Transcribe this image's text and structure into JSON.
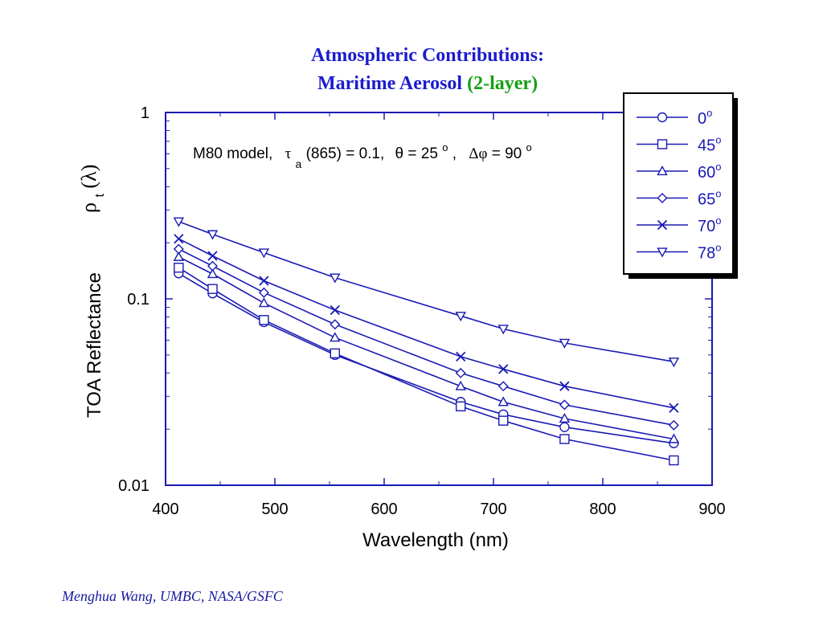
{
  "slide": {
    "title_line1": "Atmospheric Contributions:",
    "title_line2_main": "Maritime Aerosol",
    "title_line2_highlight": "(2-layer)",
    "footer": "Menghua Wang, UMBC, NASA/GSFC"
  },
  "colors": {
    "title": "#1c1ccd",
    "highlight": "#14a014",
    "series": "#1a1ab4",
    "axis": "#1a1ab4",
    "text": "#000000"
  },
  "chart_data": {
    "type": "line",
    "xlabel": "Wavelength (nm)",
    "ylabel": "TOA Reflectance",
    "ylabel_symbol": "ρ",
    "ylabel_sub": "t",
    "ylabel_arg": "(λ)",
    "xlim": [
      400,
      900
    ],
    "ylim": [
      0.01,
      1
    ],
    "yscale": "log",
    "xticks": [
      "400",
      "500",
      "600",
      "700",
      "800",
      "900"
    ],
    "yticks": [
      "0.01",
      "0.1",
      "1"
    ],
    "annotation": {
      "model": "M80 model,",
      "tau": "τ",
      "tau_sub": "a",
      "tau_rest": "(865) = 0.1,",
      "theta": "θ = 25",
      "theta_sup": "o",
      "sep": ",",
      "dphi": "Δφ",
      "dphi_rest": " = 90",
      "dphi_sup": "o"
    },
    "legend_position": "top-right",
    "x": [
      412,
      443,
      490,
      555,
      670,
      709,
      765,
      865
    ],
    "series": [
      {
        "name": "0",
        "sup": "o",
        "marker": "circle",
        "values": [
          0.137,
          0.107,
          0.075,
          0.05,
          0.028,
          0.024,
          0.0205,
          0.0168
        ]
      },
      {
        "name": "45",
        "sup": "o",
        "marker": "square",
        "values": [
          0.147,
          0.113,
          0.077,
          0.051,
          0.0265,
          0.0222,
          0.0177,
          0.0136
        ]
      },
      {
        "name": "60",
        "sup": "o",
        "marker": "triangle-up",
        "values": [
          0.168,
          0.136,
          0.095,
          0.062,
          0.034,
          0.028,
          0.0228,
          0.0177
        ]
      },
      {
        "name": "65",
        "sup": "o",
        "marker": "diamond",
        "values": [
          0.185,
          0.15,
          0.108,
          0.073,
          0.04,
          0.034,
          0.027,
          0.021
        ]
      },
      {
        "name": "70",
        "sup": "o",
        "marker": "x",
        "values": [
          0.21,
          0.17,
          0.125,
          0.087,
          0.049,
          0.042,
          0.034,
          0.026
        ]
      },
      {
        "name": "78",
        "sup": "o",
        "marker": "triangle-down",
        "values": [
          0.26,
          0.222,
          0.177,
          0.13,
          0.081,
          0.069,
          0.058,
          0.046
        ]
      }
    ]
  }
}
